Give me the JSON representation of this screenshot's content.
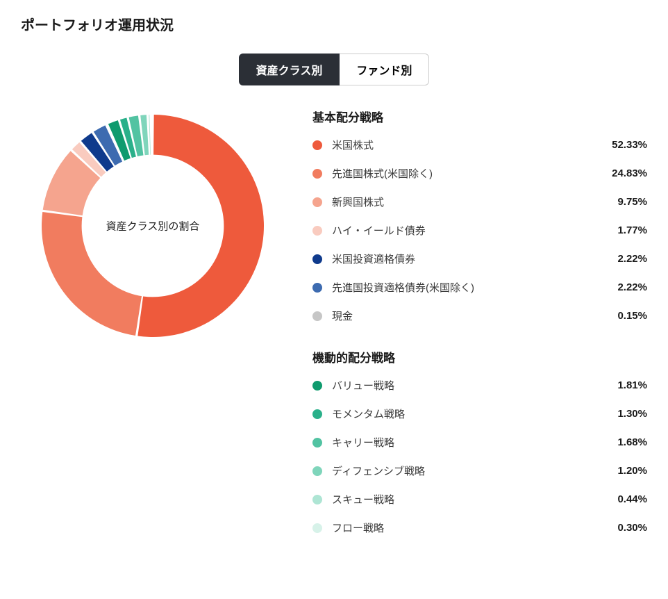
{
  "title": "ポートフォリオ運用状況",
  "tabs": [
    {
      "label": "資産クラス別",
      "active": true
    },
    {
      "label": "ファンド別",
      "active": false
    }
  ],
  "chart": {
    "type": "donut",
    "center_label": "資産クラス別の割合",
    "size": 320,
    "inner_ratio": 0.64,
    "gap_deg": 1.2,
    "start_angle_deg": -90,
    "background_color": "#ffffff"
  },
  "groups": [
    {
      "title": "基本配分戦略",
      "items": [
        {
          "label": "米国株式",
          "value": 52.33,
          "display": "52.33%",
          "color": "#ee5a3c"
        },
        {
          "label": "先進国株式(米国除く)",
          "value": 24.83,
          "display": "24.83%",
          "color": "#f17c5f"
        },
        {
          "label": "新興国株式",
          "value": 9.75,
          "display": "9.75%",
          "color": "#f5a48e"
        },
        {
          "label": "ハイ・イールド債券",
          "value": 1.77,
          "display": "1.77%",
          "color": "#f9cbbf"
        },
        {
          "label": "米国投資適格債券",
          "value": 2.22,
          "display": "2.22%",
          "color": "#0f3a8c"
        },
        {
          "label": "先進国投資適格債券(米国除く)",
          "value": 2.22,
          "display": "2.22%",
          "color": "#3d6bb0"
        },
        {
          "label": "現金",
          "value": 0.15,
          "display": "0.15%",
          "color": "#c6c6c6"
        }
      ]
    },
    {
      "title": "機動的配分戦略",
      "items": [
        {
          "label": "バリュー戦略",
          "value": 1.81,
          "display": "1.81%",
          "color": "#0f9b6e"
        },
        {
          "label": "モメンタム戦略",
          "value": 1.3,
          "display": "1.30%",
          "color": "#2ab08a"
        },
        {
          "label": "キャリー戦略",
          "value": 1.68,
          "display": "1.68%",
          "color": "#52c3a2"
        },
        {
          "label": "ディフェンシブ戦略",
          "value": 1.2,
          "display": "1.20%",
          "color": "#7fd5bb"
        },
        {
          "label": "スキュー戦略",
          "value": 0.44,
          "display": "0.44%",
          "color": "#aee5d4"
        },
        {
          "label": "フロー戦略",
          "value": 0.3,
          "display": "0.30%",
          "color": "#d7f2e9"
        }
      ]
    }
  ]
}
